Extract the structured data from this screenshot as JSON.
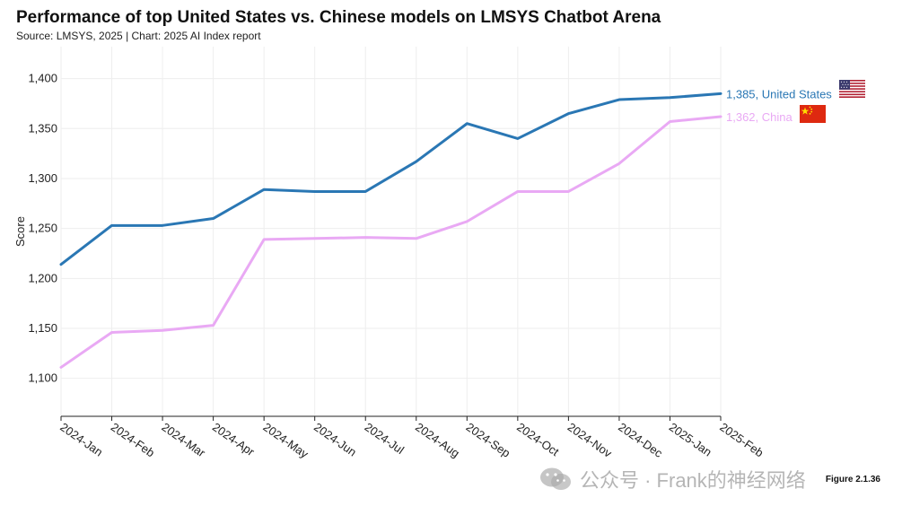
{
  "header": {
    "title": "Performance of top United States vs. Chinese models on LMSYS Chatbot Arena",
    "source": "Source: LMSYS, 2025 | Chart: 2025 AI Index report"
  },
  "figure_label": "Figure 2.1.36",
  "watermark": {
    "text": "公众号 · Frank的神经网络",
    "icon": "wechat-icon"
  },
  "colors": {
    "united_states": "#2a77b4",
    "china": "#e9a9f4",
    "grid": "#eeeeee",
    "axis": "#222222"
  },
  "chart_data": {
    "type": "line",
    "title": "Performance of top United States vs. Chinese models on LMSYS Chatbot Arena",
    "xlabel": "",
    "ylabel": "Score",
    "ylim": [
      1062,
      1432
    ],
    "yticks": [
      1100,
      1150,
      1200,
      1250,
      1300,
      1350,
      1400
    ],
    "ytick_labels": [
      "1,100",
      "1,150",
      "1,200",
      "1,250",
      "1,300",
      "1,350",
      "1,400"
    ],
    "categories": [
      "2024-Jan",
      "2024-Feb",
      "2024-Mar",
      "2024-Apr",
      "2024-May",
      "2024-Jun",
      "2024-Jul",
      "2024-Aug",
      "2024-Sep",
      "2024-Oct",
      "2024-Nov",
      "2024-Dec",
      "2025-Jan",
      "2025-Feb"
    ],
    "grid": true,
    "series": [
      {
        "name": "United States",
        "end_label": "1,385, United States",
        "flag": "us-flag-icon",
        "values": [
          1214,
          1253,
          1253,
          1260,
          1289,
          1287,
          1287,
          1317,
          1355,
          1340,
          1365,
          1379,
          1381,
          1385
        ]
      },
      {
        "name": "China",
        "end_label": "1,362, China",
        "flag": "china-flag-icon",
        "values": [
          1111,
          1146,
          1148,
          1153,
          1239,
          1240,
          1241,
          1240,
          1257,
          1287,
          1287,
          1315,
          1357,
          1362
        ]
      }
    ]
  }
}
